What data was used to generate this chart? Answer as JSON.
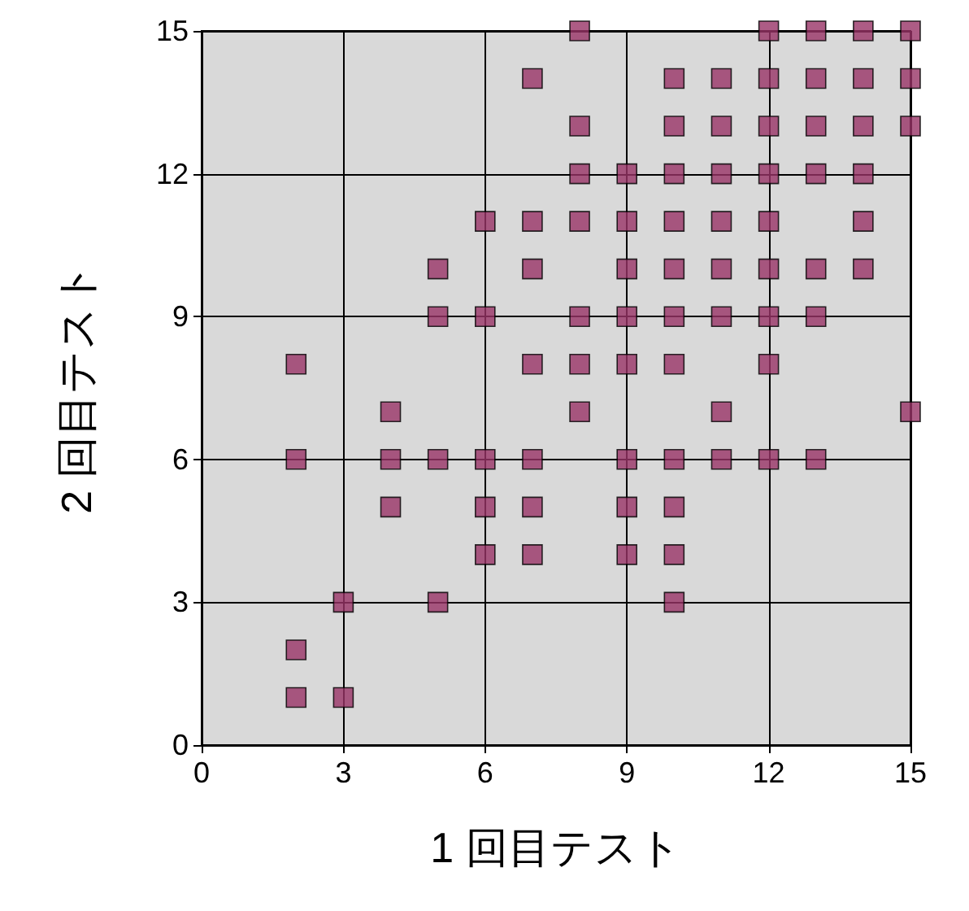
{
  "chart_data": {
    "type": "scatter",
    "xlabel": "1 回目テスト",
    "ylabel": "2 回目テスト",
    "x": [
      2,
      2,
      2,
      2,
      3,
      3,
      4,
      4,
      4,
      5,
      5,
      5,
      5,
      6,
      6,
      6,
      6,
      6,
      7,
      7,
      7,
      7,
      7,
      7,
      7,
      8,
      8,
      8,
      8,
      8,
      8,
      8,
      9,
      9,
      9,
      9,
      9,
      9,
      9,
      9,
      10,
      10,
      10,
      10,
      10,
      10,
      10,
      10,
      10,
      10,
      10,
      11,
      11,
      11,
      11,
      11,
      11,
      11,
      11,
      12,
      12,
      12,
      12,
      12,
      12,
      12,
      12,
      12,
      13,
      13,
      13,
      13,
      13,
      13,
      13,
      14,
      14,
      14,
      14,
      14,
      14,
      15,
      15,
      15,
      15
    ],
    "series": [
      {
        "color": "#993366",
        "values": [
          8,
          6,
          2,
          1,
          3,
          1,
          7,
          6,
          5,
          10,
          9,
          6,
          3,
          11,
          9,
          6,
          5,
          4,
          14,
          11,
          10,
          8,
          6,
          5,
          4,
          15,
          13,
          12,
          11,
          9,
          8,
          7,
          12,
          11,
          10,
          9,
          8,
          6,
          5,
          4,
          14,
          13,
          12,
          11,
          10,
          9,
          8,
          6,
          5,
          4,
          3,
          14,
          13,
          12,
          11,
          10,
          9,
          7,
          6,
          15,
          14,
          13,
          12,
          11,
          10,
          9,
          8,
          6,
          15,
          14,
          13,
          12,
          10,
          9,
          6,
          15,
          14,
          13,
          12,
          11,
          10,
          15,
          14,
          13,
          7
        ]
      }
    ],
    "xlim": [
      0,
      15
    ],
    "xticks": [
      0,
      3,
      6,
      9,
      12,
      15
    ],
    "ylim": [
      0,
      15
    ],
    "yticks": [
      0,
      3,
      6,
      9,
      12,
      15
    ],
    "grid": true,
    "marker": "square"
  }
}
